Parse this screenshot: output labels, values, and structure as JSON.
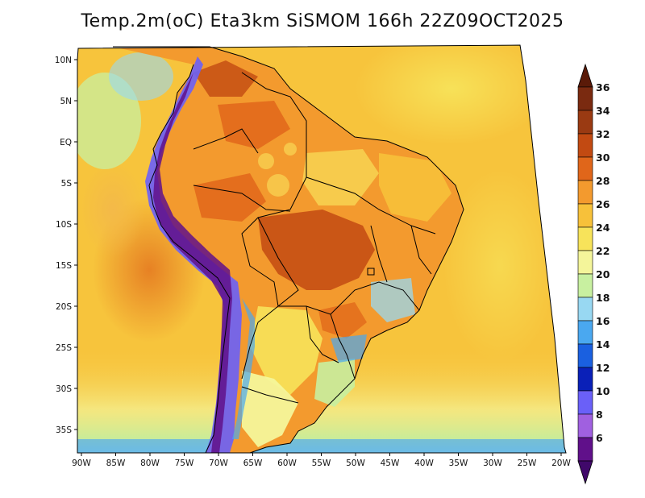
{
  "title": "Temp.2m(oC) Eta3km SiSMOM 166h 22Z09OCT2025",
  "colorbar": {
    "labels": [
      "36",
      "34",
      "32",
      "30",
      "28",
      "26",
      "24",
      "22",
      "20",
      "18",
      "16",
      "14",
      "12",
      "10",
      "8",
      "6"
    ],
    "colors": [
      "#7a2a10",
      "#9a3a12",
      "#c24a12",
      "#e0661a",
      "#f39a2e",
      "#f7c13a",
      "#f7e35a",
      "#f4f59a",
      "#c8f0a0",
      "#98d8f2",
      "#4aa8f0",
      "#1a60e0",
      "#0a20b8",
      "#6a60f8",
      "#a060e0",
      "#60108a"
    ],
    "top_arrow_color": "#5a1a08",
    "bottom_arrow_color": "#40086a"
  },
  "axes": {
    "lon_labels": [
      "90W",
      "85W",
      "80W",
      "75W",
      "70W",
      "65W",
      "60W",
      "55W",
      "50W",
      "45W",
      "40W",
      "35W",
      "30W",
      "25W",
      "20W"
    ],
    "lat_labels": [
      "10N",
      "5N",
      "EQ",
      "5S",
      "10S",
      "15S",
      "20S",
      "25S",
      "30S",
      "35S"
    ]
  },
  "field": {
    "ocean_color": "#f7c43c",
    "southern_ocean_color": "#cfe9a0"
  }
}
